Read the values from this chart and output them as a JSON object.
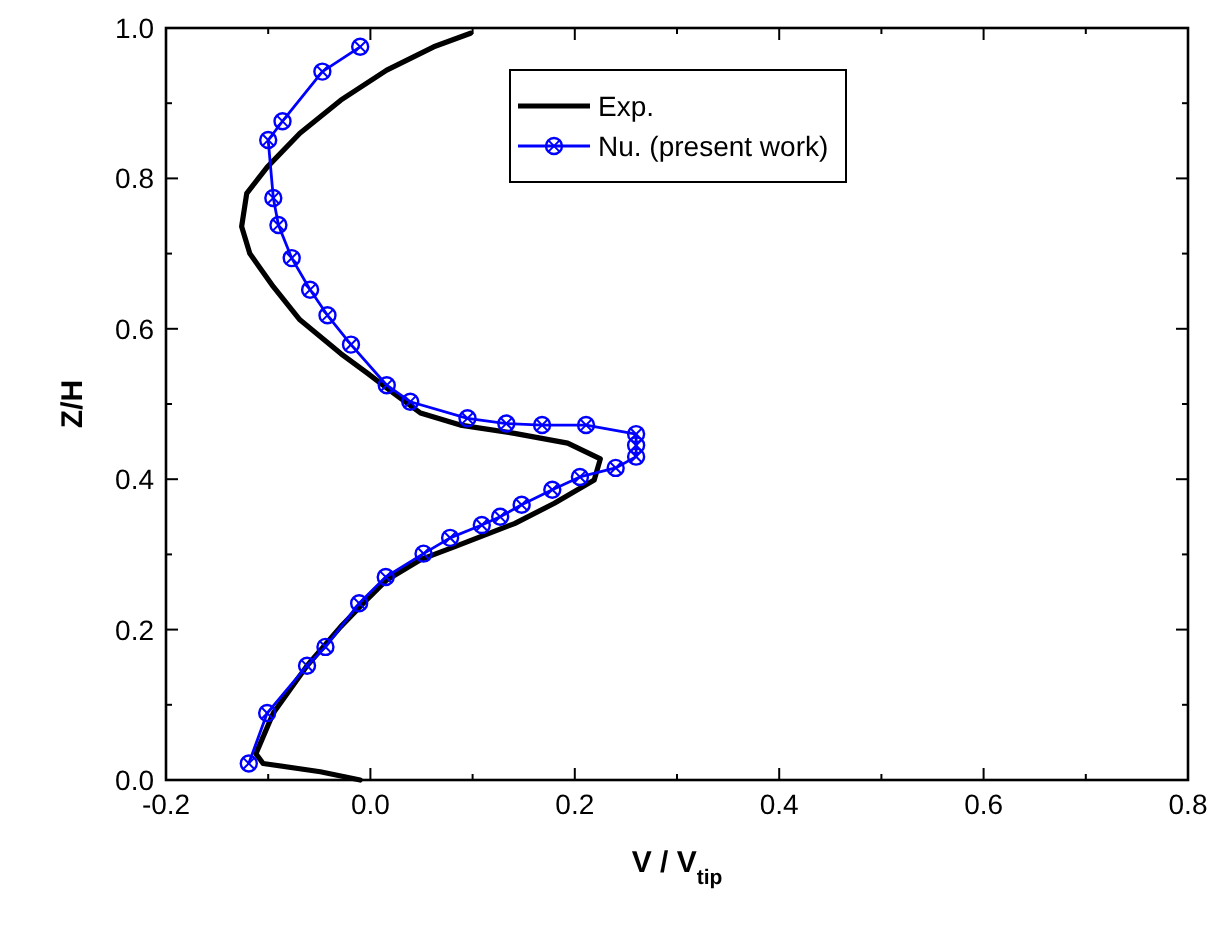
{
  "chart_data": {
    "type": "line",
    "xlabel": "V / V$_{tip}$",
    "ylabel": "Z/H",
    "xlim": [
      -0.2,
      0.8
    ],
    "ylim": [
      0,
      1
    ],
    "xticks": [
      -0.2,
      {
        "value": 0,
        "label": "0.0"
      },
      0.2,
      0.4,
      0.6,
      0.8
    ],
    "yticks": [
      {
        "value": 0,
        "label": "0.0"
      },
      0.2,
      0.4,
      0.6,
      0.8,
      {
        "value": 1,
        "label": "1.0"
      }
    ],
    "grid": false,
    "legend": "top right",
    "line_style": "solid",
    "series": [
      {
        "name": "Exp.",
        "color": "#000000",
        "marker": "none",
        "x": [
          -0.01,
          -0.049,
          -0.105,
          -0.112,
          -0.095,
          -0.062,
          -0.029,
          -0.004,
          0.016,
          0.049,
          0.082,
          0.141,
          0.18,
          0.219,
          0.225,
          0.193,
          0.141,
          0.088,
          0.049,
          0.023,
          -0.003,
          -0.029,
          -0.069,
          -0.095,
          -0.118,
          -0.126,
          -0.121,
          -0.101,
          -0.069,
          -0.029,
          0.016,
          0.062,
          0.098
        ],
        "values": [
          0.0,
          0.011,
          0.022,
          0.035,
          0.089,
          0.152,
          0.204,
          0.239,
          0.266,
          0.293,
          0.31,
          0.341,
          0.368,
          0.399,
          0.427,
          0.448,
          0.461,
          0.472,
          0.488,
          0.514,
          0.541,
          0.567,
          0.612,
          0.656,
          0.7,
          0.736,
          0.78,
          0.815,
          0.86,
          0.904,
          0.944,
          0.975,
          0.993
        ]
      },
      {
        "name": "Nu. (present work)",
        "color": "#0000ff",
        "marker": "circle",
        "x": [
          -0.119,
          -0.101,
          -0.062,
          -0.044,
          -0.011,
          0.015,
          0.052,
          0.078,
          0.109,
          0.127,
          0.148,
          0.178,
          0.205,
          0.24,
          0.26,
          0.26,
          0.26,
          0.211,
          0.168,
          0.133,
          0.095,
          0.039,
          0.016,
          -0.019,
          -0.042,
          -0.059,
          -0.077,
          -0.09,
          -0.095,
          -0.1,
          -0.086,
          -0.047,
          -0.01
        ],
        "values": [
          0.022,
          0.089,
          0.152,
          0.177,
          0.235,
          0.27,
          0.301,
          0.322,
          0.339,
          0.35,
          0.366,
          0.386,
          0.403,
          0.415,
          0.43,
          0.445,
          0.46,
          0.472,
          0.472,
          0.474,
          0.481,
          0.503,
          0.525,
          0.579,
          0.618,
          0.652,
          0.694,
          0.738,
          0.774,
          0.851,
          0.876,
          0.942,
          0.975
        ]
      }
    ]
  }
}
